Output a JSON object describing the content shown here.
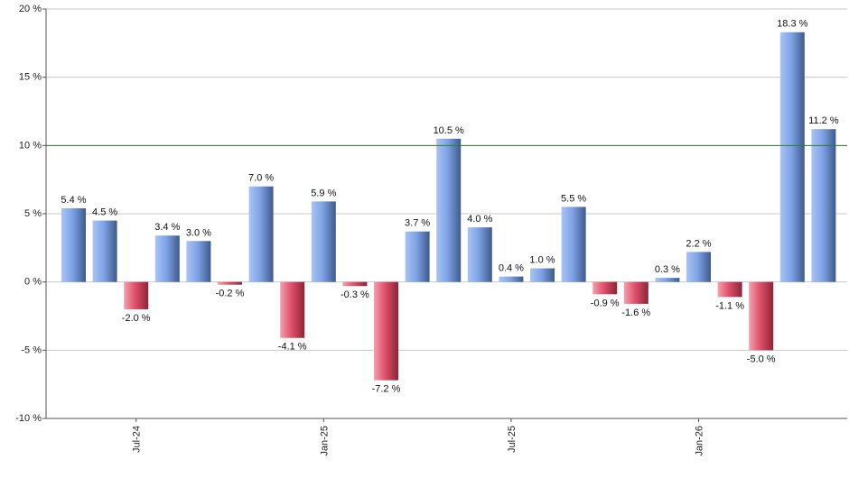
{
  "chart_data": {
    "type": "bar",
    "title": "",
    "xlabel": "",
    "ylabel": "",
    "ylim": [
      -10,
      20
    ],
    "y_unit_suffix": " %",
    "y_ticks": [
      {
        "value": 20,
        "label": "20 %"
      },
      {
        "value": 15,
        "label": "15 %"
      },
      {
        "value": 10,
        "label": "10 %"
      },
      {
        "value": 5,
        "label": "5 %"
      },
      {
        "value": 0,
        "label": "0 %"
      },
      {
        "value": -5,
        "label": "-5 %"
      },
      {
        "value": -10,
        "label": "-10 %"
      }
    ],
    "x_ticks": [
      {
        "index": 2,
        "label": "Jul-24"
      },
      {
        "index": 8,
        "label": "Jan-25"
      },
      {
        "index": 14,
        "label": "Jul-25"
      },
      {
        "index": 20,
        "label": "Jan-26"
      }
    ],
    "values": [
      5.4,
      4.5,
      -2.0,
      3.4,
      3.0,
      -0.2,
      7.0,
      -4.1,
      5.9,
      -0.3,
      -7.2,
      3.7,
      10.5,
      4.0,
      0.4,
      1.0,
      5.5,
      -0.9,
      -1.6,
      0.3,
      2.2,
      -1.1,
      -5.0,
      18.3,
      11.2
    ],
    "data_labels": [
      "5.4 %",
      "4.5 %",
      "-2.0 %",
      "3.4 %",
      "3.0 %",
      "-0.2 %",
      "7.0 %",
      "-4.1 %",
      "5.9 %",
      "-0.3 %",
      "-7.2 %",
      "3.7 %",
      "10.5 %",
      "4.0 %",
      "0.4 %",
      "1.0 %",
      "5.5 %",
      "-0.9 %",
      "-1.6 %",
      "0.3 %",
      "2.2 %",
      "-1.1 %",
      "-5.0 %",
      "18.3 %",
      "11.2 %"
    ],
    "reference_line": {
      "value": 10,
      "color": "#2e7d32"
    },
    "grid": true,
    "colors": {
      "positive": "#7fa3e6",
      "positive_dark": "#3e5a8c",
      "negative": "#e0506a",
      "negative_dark": "#8c2436",
      "grid": "#c8c8c8",
      "axis": "#555555"
    }
  }
}
